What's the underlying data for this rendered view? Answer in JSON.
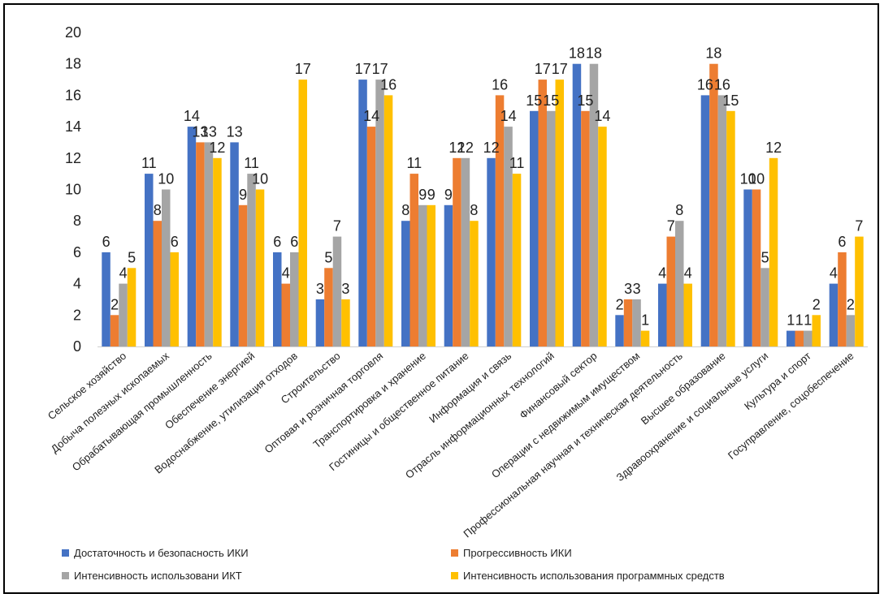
{
  "chart_data": {
    "type": "bar",
    "categories": [
      "Сельское хозяйство",
      "Добыча полезных ископаемых",
      "Обрабатывающая промышленность",
      "Обеспечение энергией",
      "Водоснабжение, утилизация отходов",
      "Строительство",
      "Оптовая и розничная торговля",
      "Транспортировка и хранение",
      "Гостиницы и общественное питание",
      "Информация и связь",
      "Отрасль информационных технологий",
      "Финансовый сектор",
      "Операции с недвижимым имуществом",
      "Профессиональная научная и техническая деятельность",
      "Высшее образование",
      "Здравоохранение и социальные услуги",
      "Культура и спорт",
      "Госуправление, соцобеспечение"
    ],
    "series": [
      {
        "name": "Достаточность и безопасность ИКИ",
        "color": "#4472C4",
        "values": [
          6,
          11,
          14,
          13,
          6,
          3,
          17,
          8,
          9,
          12,
          15,
          18,
          2,
          4,
          16,
          10,
          1,
          4
        ]
      },
      {
        "name": "Прогрессивность ИКИ",
        "color": "#ED7D31",
        "values": [
          2,
          8,
          13,
          9,
          4,
          5,
          14,
          11,
          12,
          16,
          17,
          15,
          3,
          7,
          18,
          10,
          1,
          6
        ]
      },
      {
        "name": "Интенсивность использовани ИКТ",
        "color": "#A5A5A5",
        "values": [
          4,
          10,
          13,
          11,
          6,
          7,
          17,
          9,
          12,
          14,
          15,
          18,
          3,
          8,
          16,
          5,
          1,
          2
        ]
      },
      {
        "name": "Интенсивность использования программных средств",
        "color": "#FFC000",
        "values": [
          5,
          6,
          12,
          10,
          17,
          3,
          16,
          9,
          8,
          11,
          17,
          14,
          1,
          4,
          15,
          12,
          2,
          7
        ]
      }
    ],
    "ylim": [
      0,
      20
    ],
    "yticks": [
      "0",
      "2",
      "4",
      "6",
      "8",
      "10",
      "12",
      "14",
      "16",
      "18",
      "20"
    ],
    "grid": false,
    "legend_position": "bottom"
  }
}
